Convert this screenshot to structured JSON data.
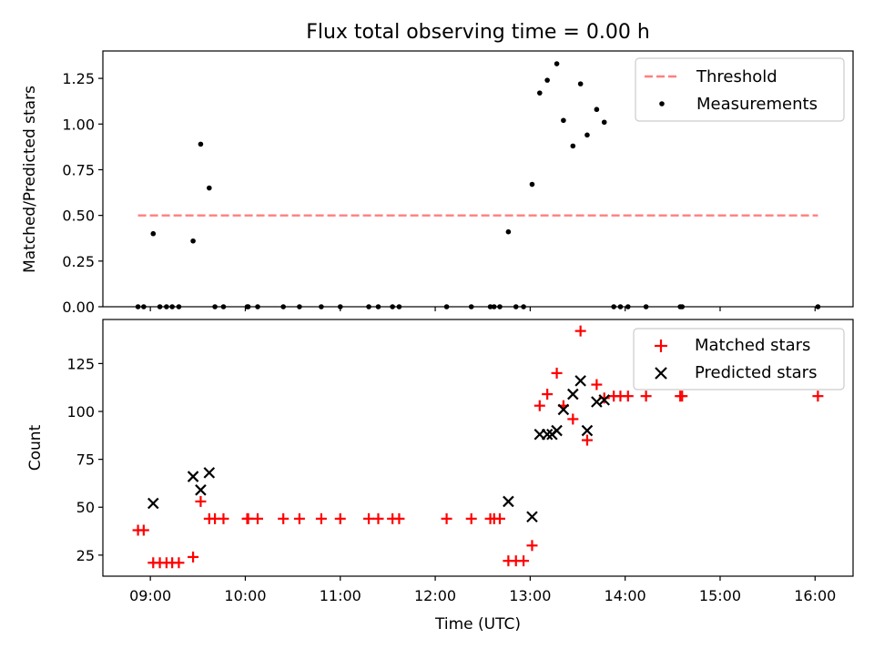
{
  "chart_data": [
    {
      "panel": "top",
      "type": "scatter",
      "title": "Flux total observing time = 0.00 h",
      "xlabel": "",
      "ylabel": "Matched/Predicted stars",
      "xlim": [
        8.5,
        16.4
      ],
      "ylim": [
        0.0,
        1.4
      ],
      "yticks": [
        0.0,
        0.25,
        0.5,
        0.75,
        1.0,
        1.25
      ],
      "ytick_labels": [
        "0.00",
        "0.25",
        "0.50",
        "0.75",
        "1.00",
        "1.25"
      ],
      "legend_position": "upper right",
      "colors": {
        "threshold": "#ff7f7f",
        "measurements": "#000000"
      },
      "threshold": {
        "name": "Threshold",
        "y": 0.5,
        "x": [
          8.87,
          16.03
        ]
      },
      "series": [
        {
          "name": "Measurements",
          "points": [
            [
              8.87,
              0
            ],
            [
              8.93,
              0
            ],
            [
              9.03,
              0.4
            ],
            [
              9.1,
              0
            ],
            [
              9.17,
              0
            ],
            [
              9.23,
              0
            ],
            [
              9.3,
              0
            ],
            [
              9.45,
              0.36
            ],
            [
              9.53,
              0.89
            ],
            [
              9.62,
              0.65
            ],
            [
              9.68,
              0
            ],
            [
              9.77,
              0
            ],
            [
              10.02,
              0
            ],
            [
              10.03,
              0
            ],
            [
              10.13,
              0
            ],
            [
              10.4,
              0
            ],
            [
              10.57,
              0
            ],
            [
              10.8,
              0
            ],
            [
              11.0,
              0
            ],
            [
              11.3,
              0
            ],
            [
              11.4,
              0
            ],
            [
              11.55,
              0
            ],
            [
              11.62,
              0
            ],
            [
              12.12,
              0
            ],
            [
              12.38,
              0
            ],
            [
              12.58,
              0
            ],
            [
              12.62,
              0
            ],
            [
              12.68,
              0
            ],
            [
              12.77,
              0.41
            ],
            [
              12.85,
              0
            ],
            [
              12.93,
              0
            ],
            [
              13.02,
              0.67
            ],
            [
              13.1,
              1.17
            ],
            [
              13.18,
              1.24
            ],
            [
              13.28,
              1.33
            ],
            [
              13.35,
              1.02
            ],
            [
              13.45,
              0.88
            ],
            [
              13.53,
              1.22
            ],
            [
              13.6,
              0.94
            ],
            [
              13.7,
              1.08
            ],
            [
              13.78,
              1.01
            ],
            [
              13.88,
              0
            ],
            [
              13.95,
              0
            ],
            [
              14.03,
              0
            ],
            [
              14.22,
              0
            ],
            [
              14.58,
              0
            ],
            [
              14.6,
              0
            ],
            [
              16.03,
              0
            ]
          ]
        }
      ]
    },
    {
      "panel": "bottom",
      "type": "scatter",
      "title": "",
      "xlabel": "Time (UTC)",
      "ylabel": "Count",
      "xlim": [
        8.5,
        16.4
      ],
      "ylim": [
        14,
        148
      ],
      "yticks": [
        25,
        50,
        75,
        100,
        125
      ],
      "ytick_labels": [
        "25",
        "50",
        "75",
        "100",
        "125"
      ],
      "xticks": [
        9,
        10,
        11,
        12,
        13,
        14,
        15,
        16
      ],
      "xtick_labels": [
        "09:00",
        "10:00",
        "11:00",
        "12:00",
        "13:00",
        "14:00",
        "15:00",
        "16:00"
      ],
      "legend_position": "upper right",
      "colors": {
        "matched": "#ff0000",
        "predicted": "#000000"
      },
      "series": [
        {
          "name": "Matched stars",
          "marker": "plus",
          "points": [
            [
              8.87,
              38
            ],
            [
              8.93,
              38
            ],
            [
              9.03,
              21
            ],
            [
              9.1,
              21
            ],
            [
              9.17,
              21
            ],
            [
              9.23,
              21
            ],
            [
              9.3,
              21
            ],
            [
              9.45,
              24
            ],
            [
              9.53,
              53
            ],
            [
              9.62,
              44
            ],
            [
              9.68,
              44
            ],
            [
              9.77,
              44
            ],
            [
              10.02,
              44
            ],
            [
              10.03,
              44
            ],
            [
              10.13,
              44
            ],
            [
              10.4,
              44
            ],
            [
              10.57,
              44
            ],
            [
              10.8,
              44
            ],
            [
              11.0,
              44
            ],
            [
              11.3,
              44
            ],
            [
              11.4,
              44
            ],
            [
              11.55,
              44
            ],
            [
              11.62,
              44
            ],
            [
              12.12,
              44
            ],
            [
              12.38,
              44
            ],
            [
              12.58,
              44
            ],
            [
              12.62,
              44
            ],
            [
              12.68,
              44
            ],
            [
              12.77,
              22
            ],
            [
              12.85,
              22
            ],
            [
              12.93,
              22
            ],
            [
              13.02,
              30
            ],
            [
              13.1,
              103
            ],
            [
              13.18,
              109
            ],
            [
              13.28,
              120
            ],
            [
              13.35,
              103
            ],
            [
              13.45,
              96
            ],
            [
              13.53,
              142
            ],
            [
              13.6,
              85
            ],
            [
              13.7,
              114
            ],
            [
              13.78,
              107
            ],
            [
              13.88,
              108
            ],
            [
              13.95,
              108
            ],
            [
              14.03,
              108
            ],
            [
              14.22,
              108
            ],
            [
              14.58,
              108
            ],
            [
              14.6,
              108
            ],
            [
              16.03,
              108
            ]
          ]
        },
        {
          "name": "Predicted stars",
          "marker": "x",
          "points": [
            [
              9.03,
              52
            ],
            [
              9.45,
              66
            ],
            [
              9.53,
              59
            ],
            [
              9.62,
              68
            ],
            [
              12.77,
              53
            ],
            [
              13.02,
              45
            ],
            [
              13.1,
              88
            ],
            [
              13.18,
              88
            ],
            [
              13.23,
              88
            ],
            [
              13.28,
              90
            ],
            [
              13.35,
              101
            ],
            [
              13.45,
              109
            ],
            [
              13.53,
              116
            ],
            [
              13.6,
              90
            ],
            [
              13.7,
              105
            ],
            [
              13.78,
              106
            ]
          ]
        }
      ]
    }
  ]
}
